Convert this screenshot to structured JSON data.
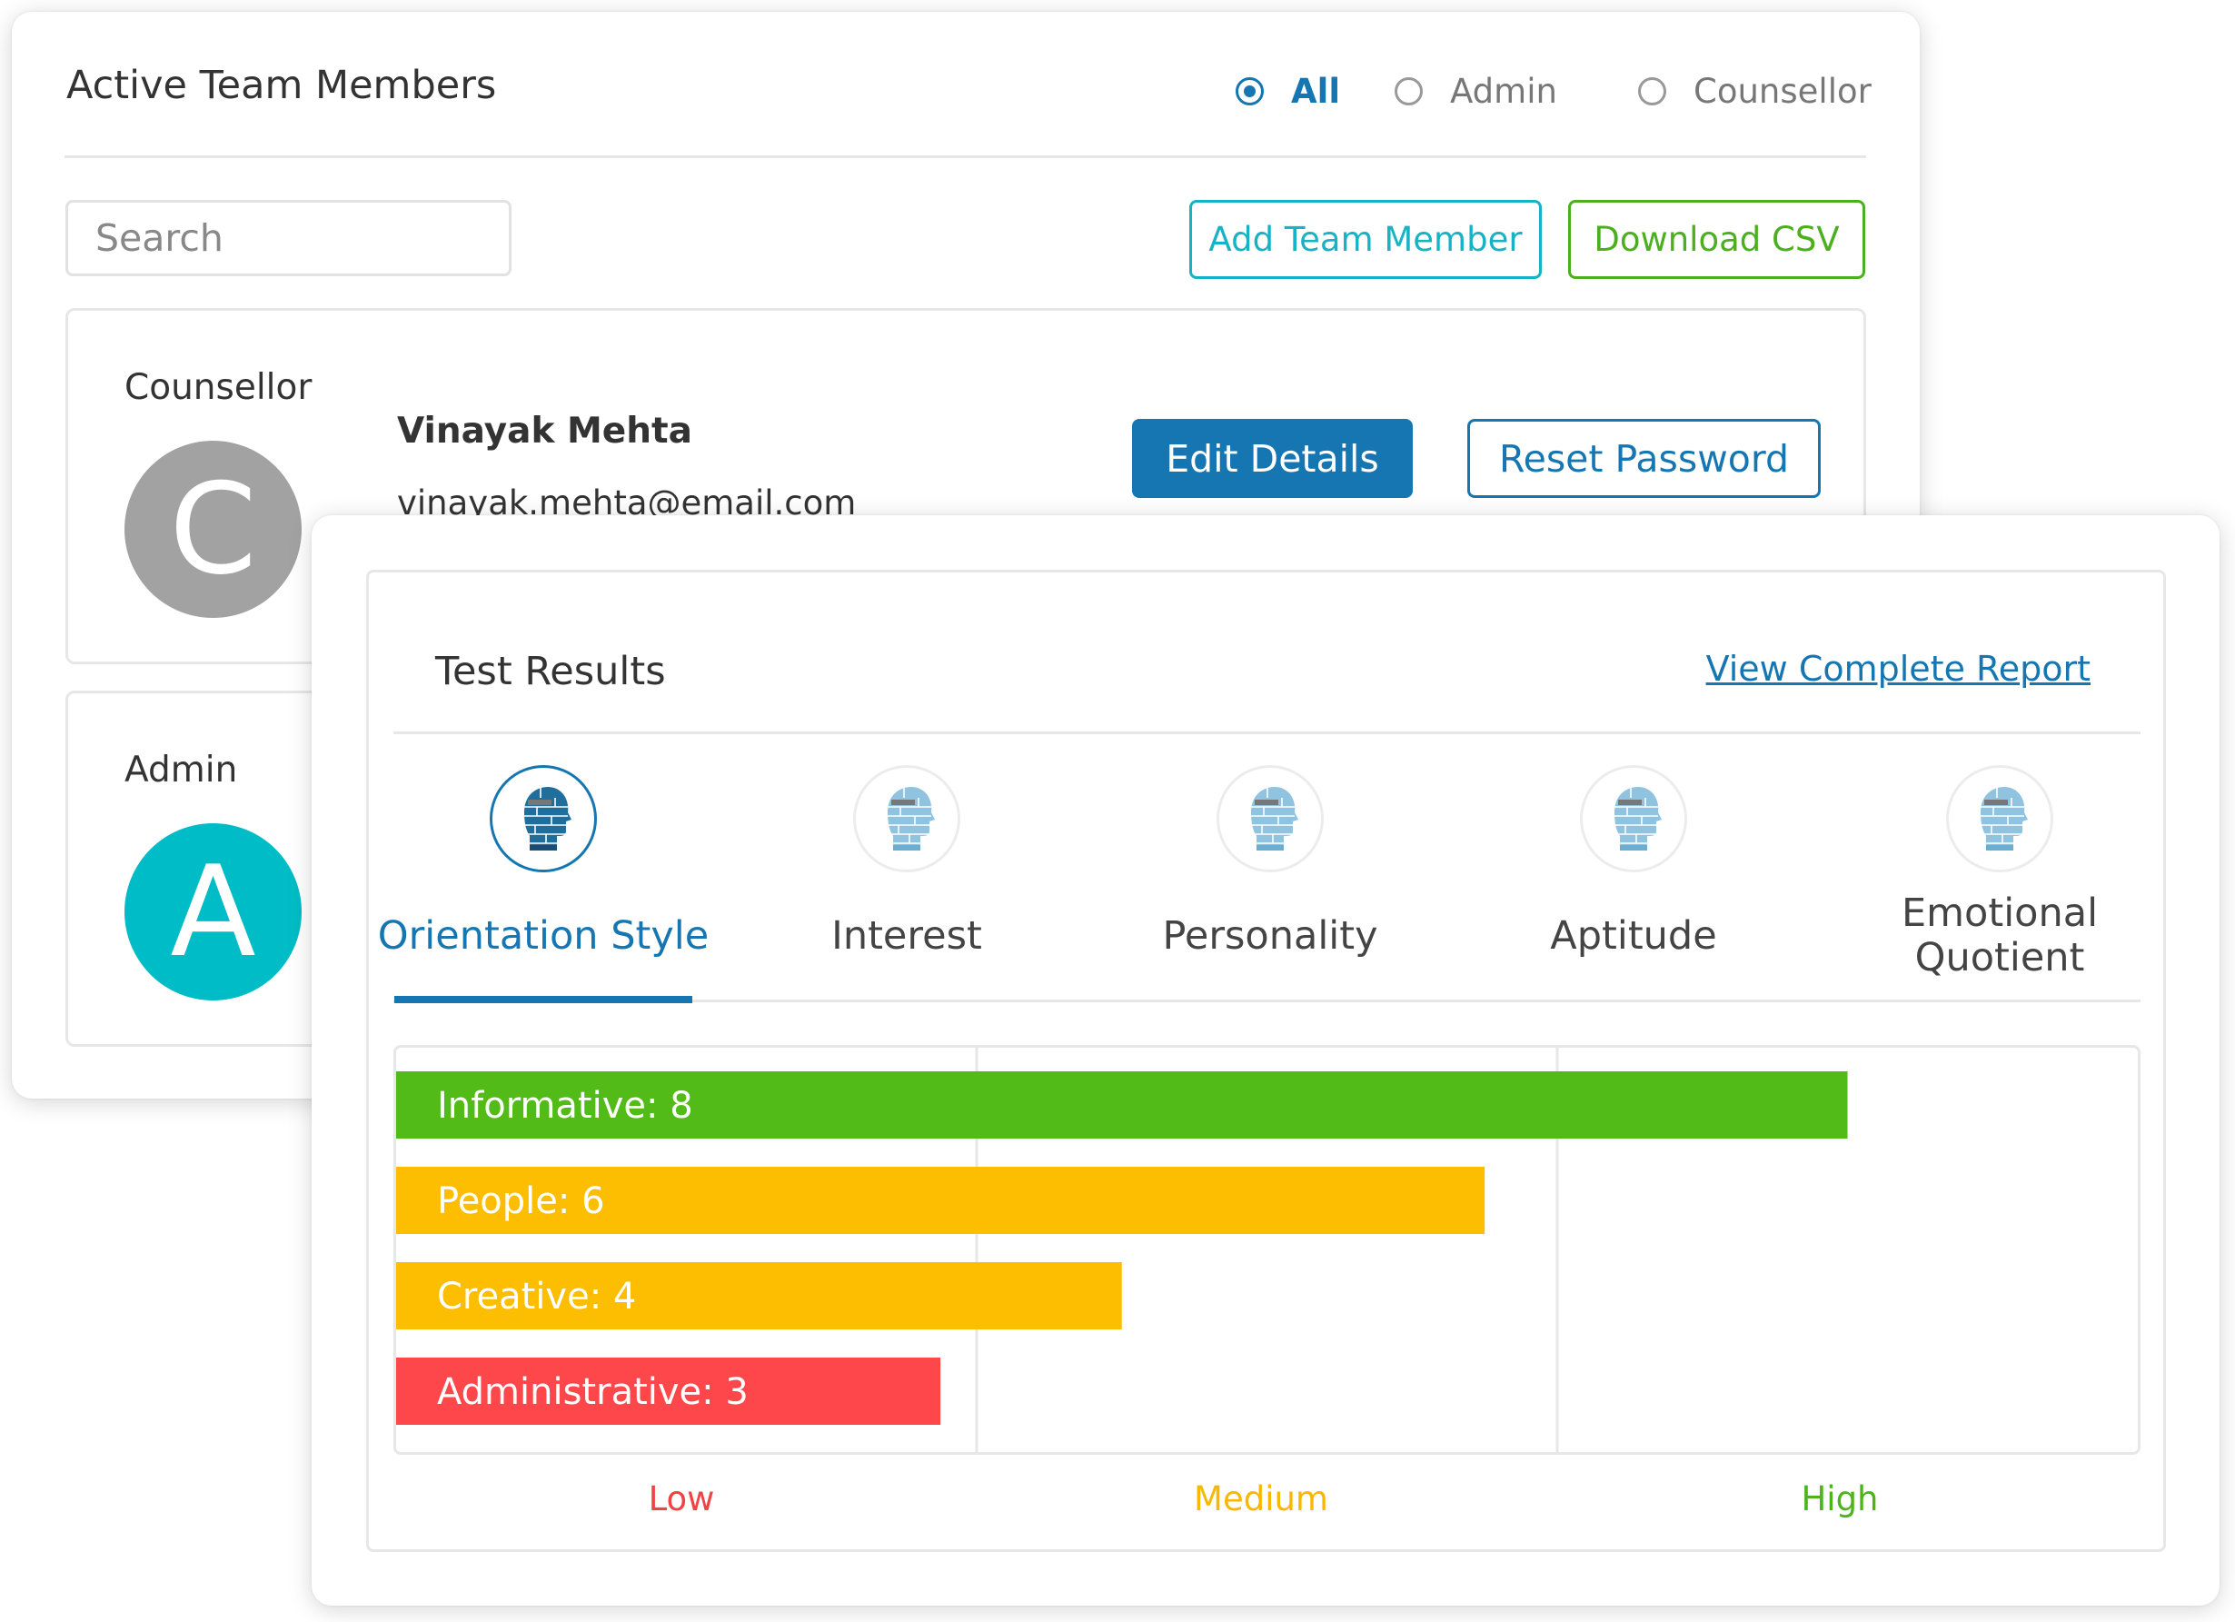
{
  "team": {
    "title": "Active Team Members",
    "filters": [
      {
        "label": "All",
        "selected": true
      },
      {
        "label": "Admin",
        "selected": false
      },
      {
        "label": "Counsellor",
        "selected": false
      }
    ],
    "search_placeholder": "Search",
    "add_button": "Add Team Member",
    "download_button": "Download CSV",
    "members": [
      {
        "role": "Counsellor",
        "avatar_letter": "C",
        "avatar_color": "#a2a2a2",
        "name": "Vinayak Mehta",
        "email": "vinayak.mehta@email.com",
        "edit_button": "Edit Details",
        "reset_button": "Reset Password"
      },
      {
        "role": "Admin",
        "avatar_letter": "A",
        "avatar_color": "#00bcc6"
      }
    ]
  },
  "results": {
    "title": "Test Results",
    "link": "View Complete Report",
    "tabs": [
      {
        "label": "Orientation Style",
        "icon": "head-brain-icon",
        "active": true
      },
      {
        "label": "Interest",
        "icon": "head-brain-icon",
        "active": false
      },
      {
        "label": "Personality",
        "icon": "head-brain-icon",
        "active": false
      },
      {
        "label": "Aptitude",
        "icon": "head-brain-icon",
        "active": false
      },
      {
        "label": "Emotional Quotient",
        "icon": "head-brain-icon",
        "active": false
      }
    ],
    "zones": [
      {
        "label": "Low",
        "color": "#ef4444"
      },
      {
        "label": "Medium",
        "color": "#f9b800"
      },
      {
        "label": "High",
        "color": "#4bb51a"
      }
    ]
  },
  "chart_data": {
    "type": "bar",
    "orientation": "horizontal",
    "categories": [
      "Informative",
      "People",
      "Creative",
      "Administrative"
    ],
    "values": [
      8,
      6,
      4,
      3
    ],
    "data_labels": [
      "Informative: 8",
      "People: 6",
      "Creative: 4",
      "Administrative: 3"
    ],
    "colors": [
      "#52bb17",
      "#fdbd00",
      "#fdbd00",
      "#fd474a"
    ],
    "xlim": [
      0,
      9.6
    ],
    "zones": [
      "Low",
      "Medium",
      "High"
    ],
    "grid": true
  }
}
